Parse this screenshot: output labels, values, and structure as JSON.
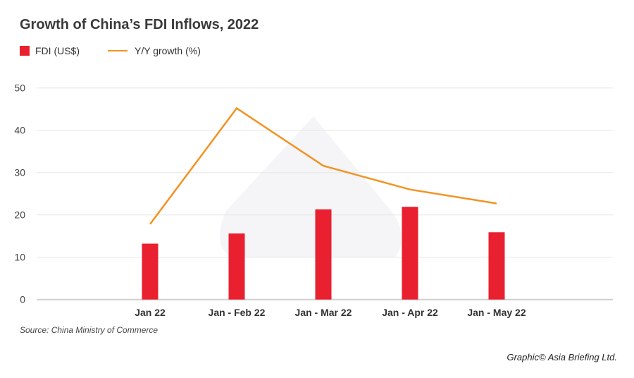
{
  "chart_data": {
    "type": "bar",
    "title": "Growth of China’s FDI Inflows, 2022",
    "categories": [
      "Jan 22",
      "Jan - Feb 22",
      "Jan - Mar 22",
      "Jan - Apr 22",
      "Jan - May 22"
    ],
    "series": [
      {
        "name": "FDI (US$)",
        "type": "bar",
        "color": "#e8202f",
        "values": [
          13.2,
          15.6,
          21.3,
          21.9,
          15.9
        ]
      },
      {
        "name": "Y/Y growth (%)",
        "type": "line",
        "color": "#f39323",
        "values": [
          17.8,
          45.2,
          31.6,
          26.0,
          22.7
        ]
      }
    ],
    "yticks": [
      "0",
      "10",
      "20",
      "30",
      "40",
      "50"
    ],
    "ylim": [
      0,
      50
    ],
    "grid": true,
    "legend": "top-left",
    "source": "Source: China Ministry of Commerce",
    "credit": "Graphic© Asia Briefing Ltd."
  }
}
